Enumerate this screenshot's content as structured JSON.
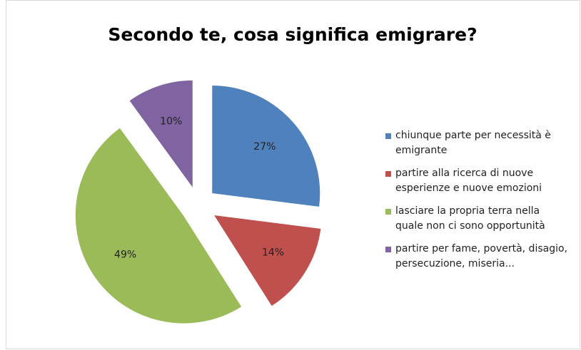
{
  "chart_data": {
    "type": "pie",
    "title": "Secondo te, cosa significa emigrare?",
    "categories": [
      "chiunque parte per necessità è emigrante",
      "partire alla ricerca di nuove esperienze e nuove emozioni",
      "lasciare la propria terra nella quale non ci sono opportunità",
      "partire per fame, povertà, disagio, persecuzione, miseria..."
    ],
    "values": [
      27,
      14,
      49,
      10
    ],
    "value_labels": [
      "27%",
      "14%",
      "49%",
      "10%"
    ],
    "colors": [
      "#4f81bd",
      "#c0504d",
      "#9bbb59",
      "#8064a2"
    ],
    "legend": "right"
  }
}
